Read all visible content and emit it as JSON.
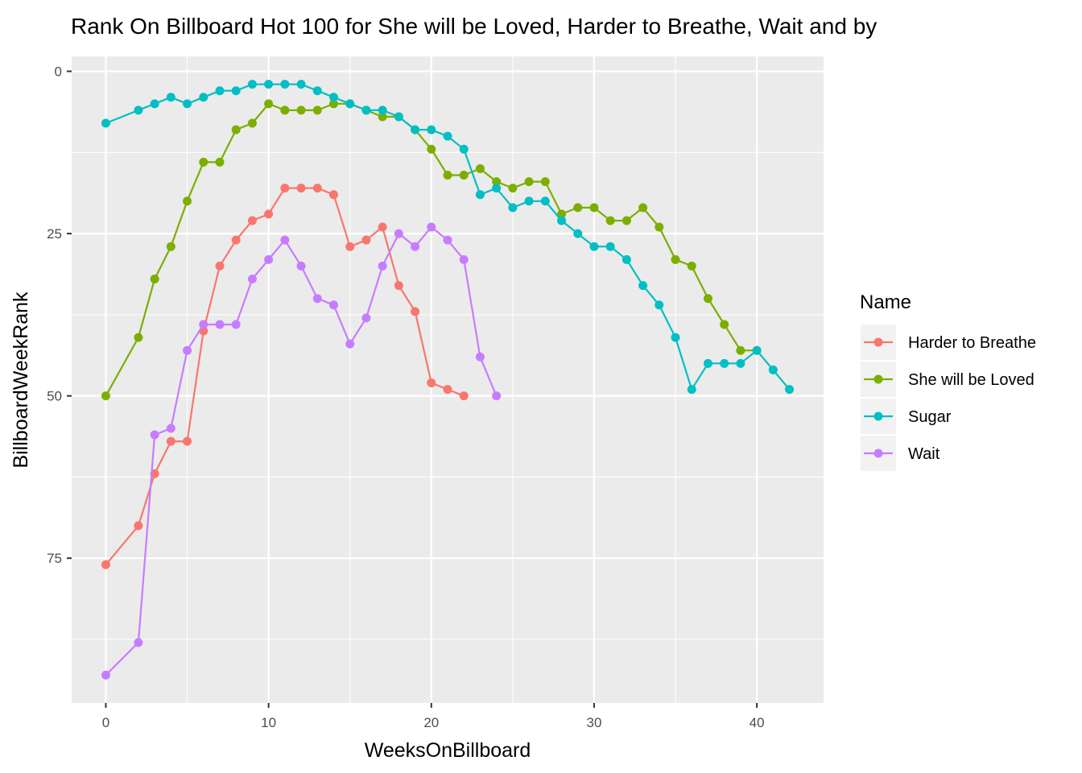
{
  "chart_data": {
    "type": "line",
    "title": "Rank On Billboard Hot 100 for She will be Loved, Harder to Breathe, Wait and  by",
    "xlabel": "WeeksOnBillboard",
    "ylabel": "BillboardWeekRank",
    "xlim": [
      -2.1,
      44.1
    ],
    "ylim": [
      -2.3,
      97.3
    ],
    "y_reversed": true,
    "x_ticks": [
      0,
      10,
      20,
      30,
      40
    ],
    "y_ticks": [
      0,
      25,
      50,
      75
    ],
    "grid": true,
    "legend": {
      "title": "Name",
      "position": "right"
    },
    "series": [
      {
        "name": "Harder to Breathe",
        "color": "#F8766D",
        "x": [
          0,
          2,
          3,
          4,
          5,
          6,
          7,
          8,
          9,
          10,
          11,
          12,
          13,
          14,
          15,
          16,
          17,
          18,
          19,
          20,
          21,
          22
        ],
        "y": [
          76,
          70,
          62,
          57,
          57,
          40,
          30,
          26,
          23,
          22,
          18,
          18,
          18,
          19,
          27,
          26,
          24,
          33,
          37,
          48,
          49,
          50
        ]
      },
      {
        "name": "She will be Loved",
        "color": "#7CAE00",
        "x": [
          0,
          2,
          3,
          4,
          5,
          6,
          7,
          8,
          9,
          10,
          11,
          12,
          13,
          14,
          15,
          16,
          17,
          18,
          19,
          20,
          21,
          22,
          23,
          24,
          25,
          26,
          27,
          28,
          29,
          30,
          31,
          32,
          33,
          34,
          35,
          36,
          37,
          38,
          39,
          40
        ],
        "y": [
          50,
          41,
          32,
          27,
          20,
          14,
          14,
          9,
          8,
          5,
          6,
          6,
          6,
          5,
          5,
          6,
          7,
          7,
          9,
          12,
          16,
          16,
          15,
          17,
          18,
          17,
          17,
          22,
          21,
          21,
          23,
          23,
          21,
          24,
          29,
          30,
          35,
          39,
          43,
          43
        ]
      },
      {
        "name": "Sugar",
        "color": "#00BFC4",
        "x": [
          0,
          2,
          3,
          4,
          5,
          6,
          7,
          8,
          9,
          10,
          11,
          12,
          13,
          14,
          15,
          16,
          17,
          18,
          19,
          20,
          21,
          22,
          23,
          24,
          25,
          26,
          27,
          28,
          29,
          30,
          31,
          32,
          33,
          34,
          35,
          36,
          37,
          38,
          39,
          40,
          41,
          42
        ],
        "y": [
          8,
          6,
          5,
          4,
          5,
          4,
          3,
          3,
          2,
          2,
          2,
          2,
          3,
          4,
          5,
          6,
          6,
          7,
          9,
          9,
          10,
          12,
          19,
          18,
          21,
          20,
          20,
          23,
          25,
          27,
          27,
          29,
          33,
          36,
          41,
          49,
          45,
          45,
          45,
          43,
          46,
          49
        ]
      },
      {
        "name": "Wait",
        "color": "#C77CFF",
        "x": [
          0,
          2,
          3,
          4,
          5,
          6,
          7,
          8,
          9,
          10,
          11,
          12,
          13,
          14,
          15,
          16,
          17,
          18,
          19,
          20,
          21,
          22,
          23,
          24
        ],
        "y": [
          93,
          88,
          56,
          55,
          43,
          39,
          39,
          39,
          32,
          29,
          26,
          30,
          35,
          36,
          42,
          38,
          30,
          25,
          27,
          24,
          26,
          29,
          44,
          50
        ]
      }
    ]
  }
}
